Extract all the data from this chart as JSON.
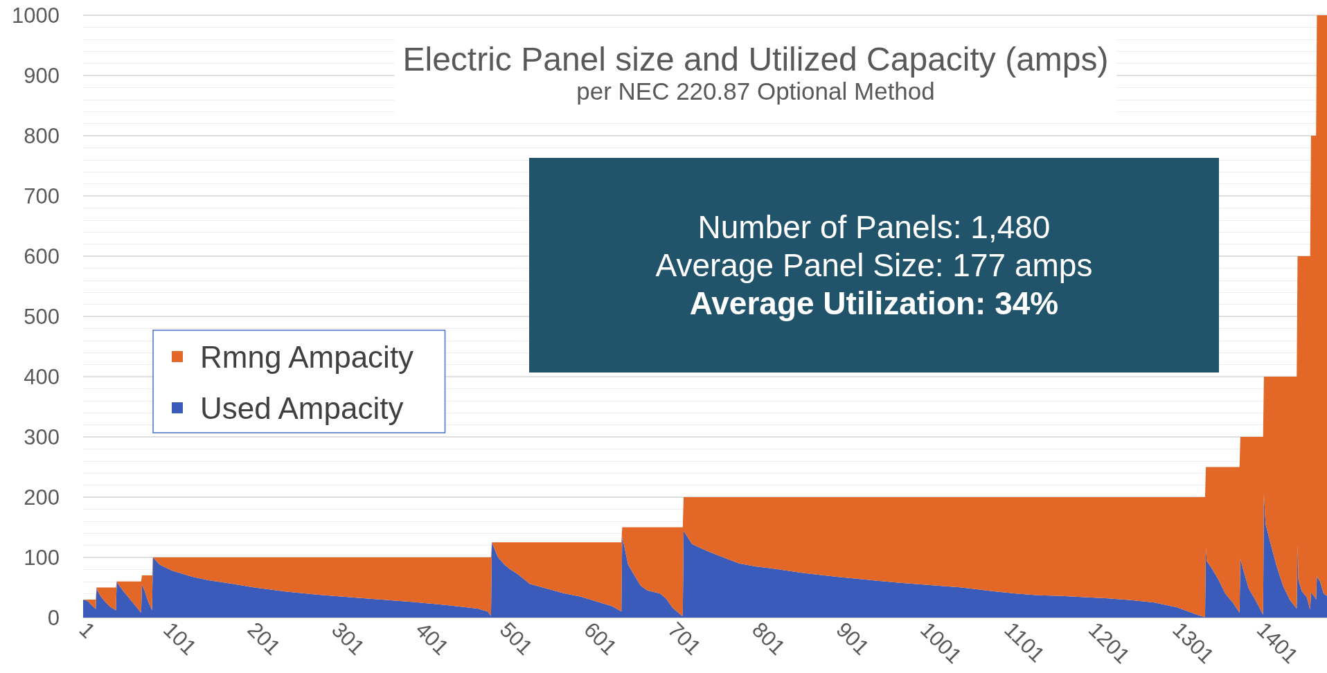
{
  "chart_data": {
    "type": "area",
    "title": "Electric Panel size and Utilized Capacity (amps)",
    "subtitle": "per NEC 220.87 Optional Method",
    "annotations": [
      "Number of Panels: 1,480",
      "Average Panel Size: 177 amps",
      "Average Utilization: 34%"
    ],
    "x": [
      1,
      6,
      16,
      17,
      18,
      22,
      28,
      33,
      40,
      41,
      43,
      50,
      60,
      70,
      71,
      74,
      78,
      83,
      84,
      92,
      107,
      130,
      150,
      175,
      205,
      243,
      281,
      318,
      356,
      394,
      432,
      470,
      482,
      486,
      487,
      494,
      502,
      509,
      517,
      532,
      555,
      574,
      592,
      611,
      630,
      641,
      642,
      649,
      657,
      664,
      672,
      687,
      694,
      702,
      714,
      715,
      725,
      736,
      744,
      762,
      781,
      800,
      819,
      857,
      895,
      933,
      970,
      1008,
      1046,
      1082,
      1110,
      1137,
      1165,
      1192,
      1220,
      1247,
      1275,
      1302,
      1327,
      1335,
      1336,
      1337,
      1343,
      1351,
      1359,
      1368,
      1376,
      1377,
      1380,
      1387,
      1395,
      1404,
      1405,
      1407,
      1412,
      1420,
      1428,
      1436,
      1444,
      1445,
      1446,
      1450,
      1456,
      1460,
      1461,
      1466,
      1467,
      1468,
      1472,
      1476,
      1480
    ],
    "series": [
      {
        "name": "Used Ampacity",
        "color": "#3a5bb9",
        "values": [
          30,
          28,
          14,
          50,
          45,
          35,
          25,
          18,
          12,
          60,
          55,
          42,
          25,
          8,
          55,
          45,
          28,
          12,
          100,
          88,
          78,
          68,
          62,
          57,
          50,
          43,
          38,
          34,
          30,
          26,
          21,
          15,
          10,
          3,
          125,
          101,
          88,
          80,
          73,
          56,
          47,
          40,
          35,
          27,
          19,
          10,
          135,
          88,
          69,
          53,
          45,
          40,
          32,
          16,
          2,
          144,
          122,
          115,
          110,
          100,
          90,
          85,
          82,
          74,
          68,
          63,
          58,
          54,
          50,
          44,
          40,
          37,
          36,
          34,
          32,
          29,
          25,
          17,
          4,
          1,
          117,
          94,
          82,
          63,
          40,
          25,
          8,
          98,
          82,
          48,
          29,
          5,
          206,
          155,
          128,
          86,
          52,
          29,
          15,
          121,
          63,
          44,
          34,
          13,
          42,
          33,
          30,
          69,
          59,
          40,
          36
        ]
      },
      {
        "name": "Rmng Ampacity",
        "color": "#e36727",
        "values": [
          0,
          2,
          16,
          0,
          5,
          15,
          25,
          32,
          38,
          0,
          5,
          18,
          35,
          52,
          15,
          25,
          42,
          58,
          0,
          12,
          22,
          32,
          38,
          43,
          50,
          57,
          62,
          66,
          70,
          74,
          79,
          85,
          90,
          97,
          0,
          24,
          37,
          45,
          52,
          69,
          78,
          85,
          90,
          98,
          106,
          115,
          15,
          62,
          81,
          97,
          105,
          110,
          118,
          134,
          148,
          56,
          78,
          85,
          90,
          100,
          110,
          115,
          118,
          126,
          132,
          137,
          142,
          146,
          150,
          156,
          160,
          163,
          164,
          166,
          168,
          171,
          175,
          183,
          196,
          199,
          133,
          156,
          168,
          187,
          210,
          225,
          242,
          202,
          218,
          252,
          271,
          295,
          194,
          245,
          272,
          314,
          348,
          371,
          385,
          479,
          537,
          556,
          566,
          587,
          758,
          767,
          770,
          931,
          941,
          960,
          964
        ]
      }
    ],
    "stacked": true,
    "xlim": [
      1,
      1480
    ],
    "xticks": [
      1,
      101,
      201,
      301,
      401,
      501,
      601,
      701,
      801,
      901,
      1001,
      1101,
      1201,
      1301,
      1401
    ],
    "ylim": [
      0,
      1000
    ],
    "yticks": [
      0,
      100,
      200,
      300,
      400,
      500,
      600,
      700,
      800,
      900,
      1000
    ],
    "grid": "y",
    "legend": "left"
  }
}
